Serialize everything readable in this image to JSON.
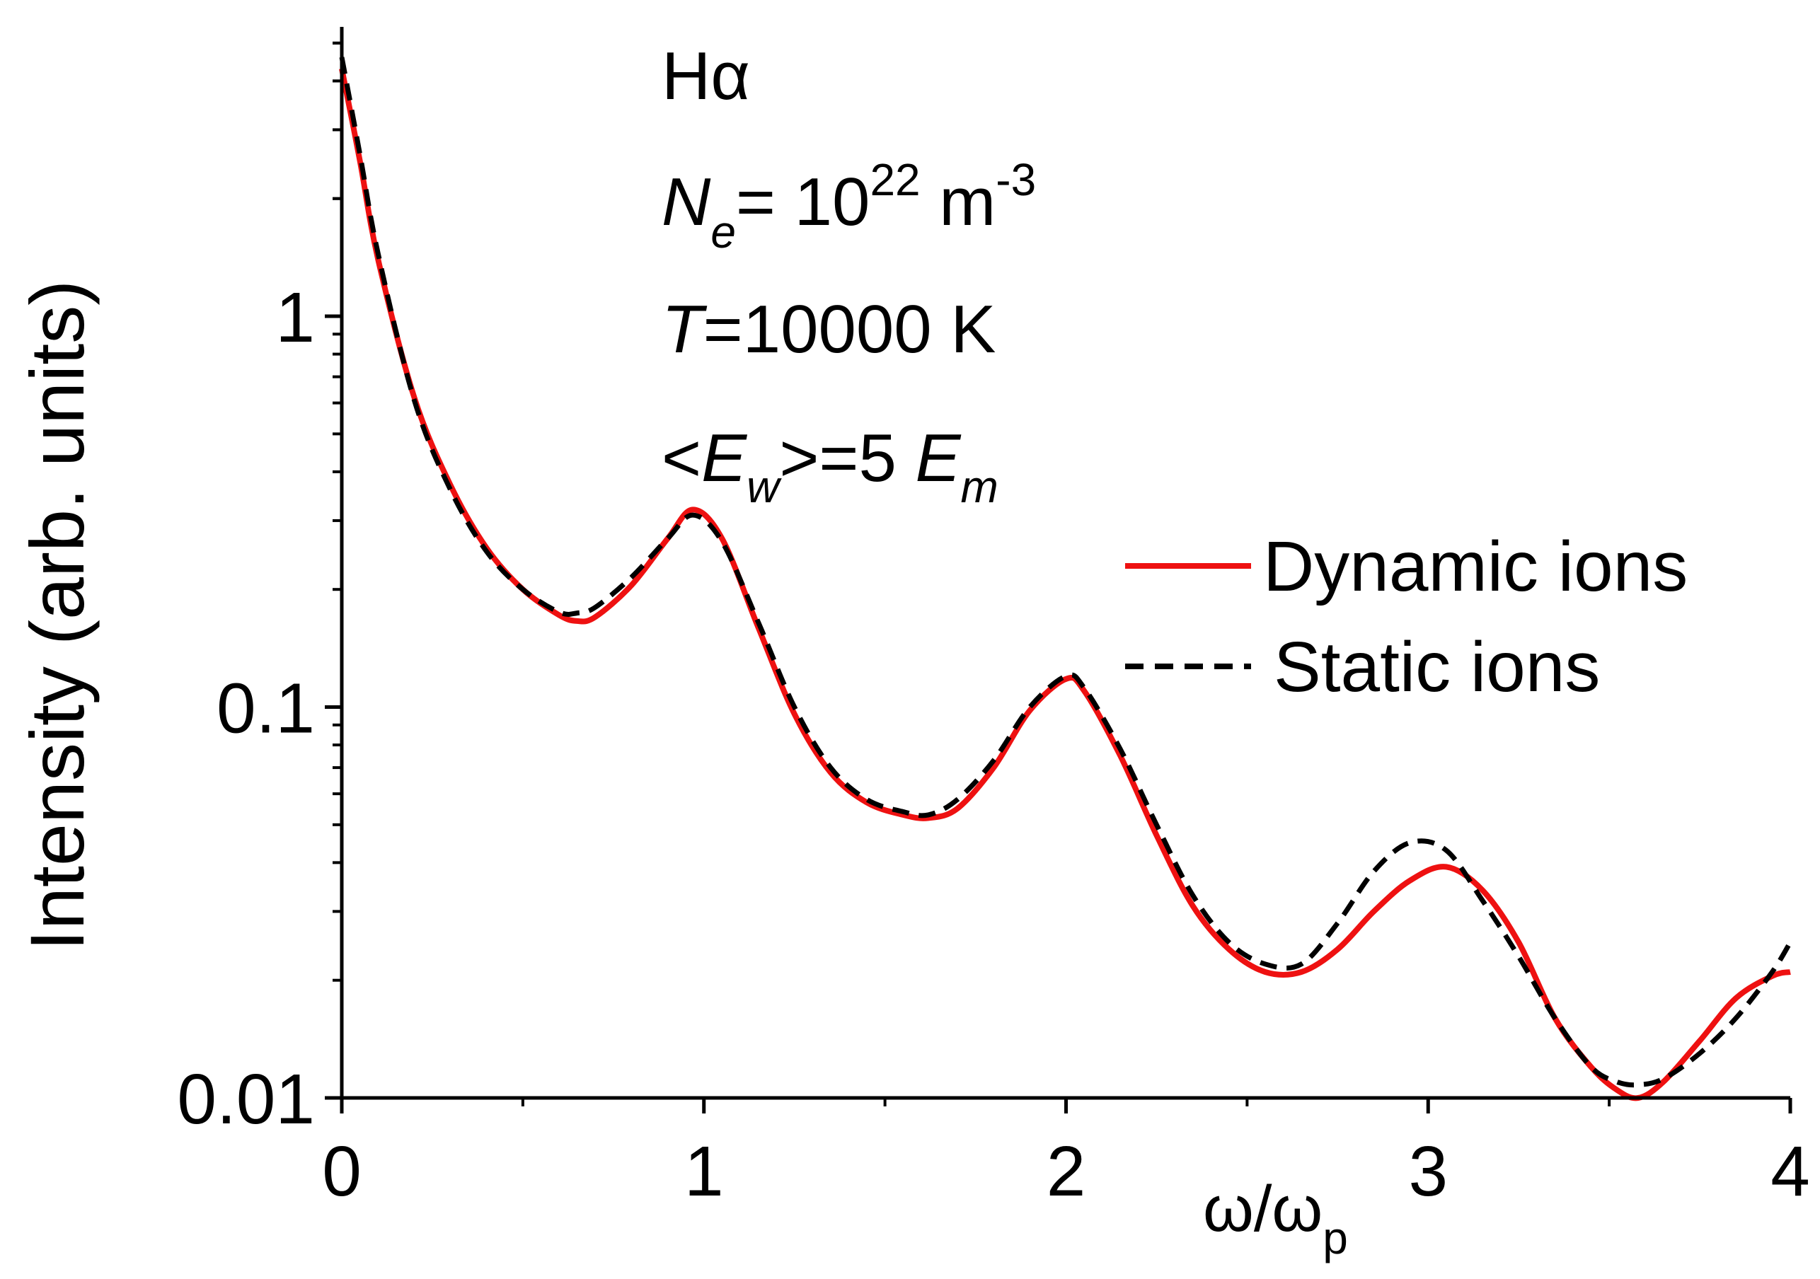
{
  "chart_data": {
    "type": "line",
    "title": "",
    "xlabel": "ω/ωp",
    "xlabel_main": "ω/ω",
    "xlabel_sub": "p",
    "ylabel": "Intensity (arb. units)",
    "xlim": [
      0,
      4
    ],
    "ylim": [
      0.01,
      5.5
    ],
    "yscale": "log",
    "x_ticks": [
      "0",
      "1",
      "2",
      "3",
      "4"
    ],
    "y_ticks": [
      "0.01",
      "0.1",
      "1"
    ],
    "annotations": {
      "line_name": "Hα",
      "density": {
        "main": "N",
        "sub": "e",
        "eq": "= 10",
        "exp": "22",
        "unit": " m",
        "unit_exp": "-3"
      },
      "temperature": {
        "main": "T",
        "rest": "=10000 K"
      },
      "field": {
        "open": "<",
        "main": "E",
        "sub": "w",
        "mid": ">=5 ",
        "main2": "E",
        "sub2": "m"
      }
    },
    "legend_position": "right",
    "series": [
      {
        "name": "Dynamic ions",
        "color": "#ee1111",
        "dash": "solid",
        "x": [
          0.0,
          0.05,
          0.1,
          0.2,
          0.3,
          0.4,
          0.5,
          0.6,
          0.65,
          0.7,
          0.8,
          0.9,
          0.97,
          1.05,
          1.15,
          1.25,
          1.35,
          1.45,
          1.55,
          1.62,
          1.7,
          1.8,
          1.9,
          2.0,
          2.05,
          2.15,
          2.25,
          2.35,
          2.45,
          2.55,
          2.65,
          2.75,
          2.85,
          2.95,
          3.05,
          3.15,
          3.25,
          3.35,
          3.45,
          3.52,
          3.58,
          3.65,
          3.75,
          3.85,
          3.95,
          4.0
        ],
        "values": [
          4.3,
          2.5,
          1.4,
          0.62,
          0.37,
          0.255,
          0.2,
          0.172,
          0.166,
          0.17,
          0.205,
          0.27,
          0.32,
          0.27,
          0.16,
          0.096,
          0.068,
          0.057,
          0.053,
          0.052,
          0.055,
          0.07,
          0.098,
          0.118,
          0.11,
          0.075,
          0.047,
          0.031,
          0.024,
          0.021,
          0.021,
          0.024,
          0.03,
          0.036,
          0.039,
          0.034,
          0.025,
          0.016,
          0.012,
          0.0105,
          0.01,
          0.011,
          0.014,
          0.018,
          0.0205,
          0.021
        ]
      },
      {
        "name": "Static ions",
        "color": "#000000",
        "dash": "dashed",
        "x": [
          0.0,
          0.05,
          0.1,
          0.2,
          0.3,
          0.4,
          0.5,
          0.6,
          0.65,
          0.7,
          0.8,
          0.9,
          0.97,
          1.05,
          1.15,
          1.25,
          1.35,
          1.45,
          1.55,
          1.62,
          1.7,
          1.8,
          1.9,
          2.0,
          2.05,
          2.15,
          2.25,
          2.35,
          2.45,
          2.55,
          2.65,
          2.75,
          2.85,
          2.95,
          3.05,
          3.15,
          3.25,
          3.35,
          3.45,
          3.52,
          3.58,
          3.65,
          3.75,
          3.85,
          3.95,
          4.0
        ],
        "values": [
          4.6,
          2.6,
          1.45,
          0.61,
          0.36,
          0.25,
          0.2,
          0.175,
          0.174,
          0.18,
          0.215,
          0.27,
          0.31,
          0.265,
          0.165,
          0.1,
          0.07,
          0.058,
          0.054,
          0.053,
          0.058,
          0.073,
          0.1,
          0.12,
          0.112,
          0.078,
          0.05,
          0.033,
          0.025,
          0.022,
          0.022,
          0.028,
          0.038,
          0.045,
          0.043,
          0.032,
          0.023,
          0.016,
          0.012,
          0.011,
          0.0108,
          0.0112,
          0.013,
          0.016,
          0.021,
          0.025
        ]
      }
    ]
  }
}
